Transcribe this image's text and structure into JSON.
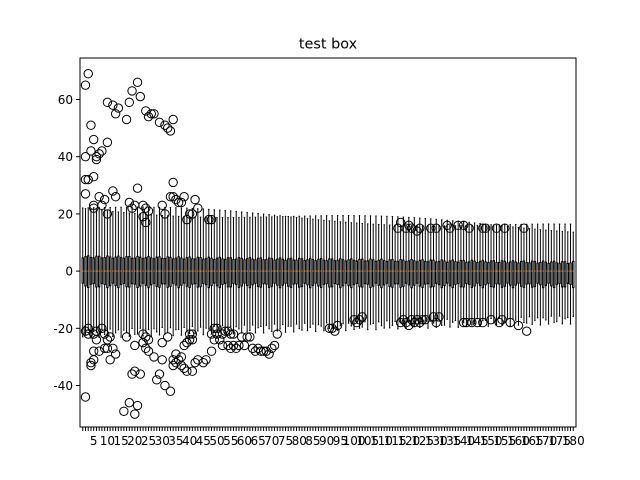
{
  "chart_data": {
    "type": "box",
    "title": "test box",
    "xlabel": "",
    "ylabel": "",
    "ylim": [
      -54.5,
      74.5
    ],
    "yticks": [
      -40,
      -20,
      0,
      20,
      40,
      60
    ],
    "box_count": 180,
    "x_tick_labels": [
      "5",
      "10",
      "15",
      "20",
      "25",
      "30",
      "35",
      "40",
      "45",
      "50",
      "55",
      "60",
      "65",
      "70",
      "75",
      "80",
      "85",
      "90",
      "95",
      "100",
      "105",
      "110",
      "115",
      "120",
      "125",
      "130",
      "135",
      "140",
      "145",
      "150",
      "155",
      "160",
      "165",
      "170",
      "175",
      "180"
    ],
    "grid": false,
    "colors": {
      "box": "#000000",
      "median": "#ff7f0e",
      "flier": "#000000"
    },
    "boxes_summary": {
      "median": 0,
      "q1_q3_early": [
        -5,
        5
      ],
      "q1_q3_late": [
        -5,
        3
      ],
      "whiskers_early": [
        -22,
        22
      ],
      "whiskers_late": [
        -17,
        15
      ]
    },
    "fliers": [
      {
        "box": 2,
        "values": [
          65,
          40,
          32,
          27,
          -21,
          -44
        ]
      },
      {
        "box": 3,
        "values": [
          69,
          32,
          -20,
          -22
        ]
      },
      {
        "box": 4,
        "values": [
          51,
          42,
          -33,
          -32
        ]
      },
      {
        "box": 5,
        "values": [
          46,
          33,
          23,
          22,
          -22,
          -28,
          -31
        ]
      },
      {
        "box": 6,
        "values": [
          40,
          39,
          -21,
          -24
        ]
      },
      {
        "box": 7,
        "values": [
          41,
          26,
          -28
        ]
      },
      {
        "box": 8,
        "values": [
          42,
          23,
          -20
        ]
      },
      {
        "box": 9,
        "values": [
          25,
          -22,
          -27
        ]
      },
      {
        "box": 10,
        "values": [
          59,
          45,
          20,
          -24,
          -27
        ]
      },
      {
        "box": 11,
        "values": [
          -23,
          -31
        ]
      },
      {
        "box": 12,
        "values": [
          58,
          28,
          -27
        ]
      },
      {
        "box": 13,
        "values": [
          55,
          26,
          -29
        ]
      },
      {
        "box": 14,
        "values": [
          57
        ]
      },
      {
        "box": 16,
        "values": [
          -49
        ]
      },
      {
        "box": 17,
        "values": [
          53,
          -23
        ]
      },
      {
        "box": 18,
        "values": [
          59,
          24,
          -46
        ]
      },
      {
        "box": 19,
        "values": [
          63,
          22,
          -36
        ]
      },
      {
        "box": 20,
        "values": [
          23,
          -50,
          -35,
          -26
        ]
      },
      {
        "box": 21,
        "values": [
          66,
          29,
          -47
        ]
      },
      {
        "box": 22,
        "values": [
          61,
          -36
        ]
      },
      {
        "box": 23,
        "values": [
          23,
          19,
          -25,
          -22
        ]
      },
      {
        "box": 24,
        "values": [
          56,
          22,
          17,
          -27,
          -23
        ]
      },
      {
        "box": 25,
        "values": [
          54,
          21,
          -28,
          -24
        ]
      },
      {
        "box": 26,
        "values": [
          55
        ]
      },
      {
        "box": 27,
        "values": [
          55,
          -30
        ]
      },
      {
        "box": 28,
        "values": [
          -38
        ]
      },
      {
        "box": 29,
        "values": [
          52,
          -36
        ]
      },
      {
        "box": 30,
        "values": [
          23,
          -31,
          -25
        ]
      },
      {
        "box": 31,
        "values": [
          51,
          20,
          -40
        ]
      },
      {
        "box": 32,
        "values": [
          50,
          -23
        ]
      },
      {
        "box": 33,
        "values": [
          49,
          26,
          -42
        ]
      },
      {
        "box": 34,
        "values": [
          53,
          31,
          26,
          -31,
          -33
        ]
      },
      {
        "box": 35,
        "values": [
          25,
          -29,
          -32
        ]
      },
      {
        "box": 36,
        "values": [
          24,
          -31
        ]
      },
      {
        "box": 37,
        "values": [
          24,
          -33,
          -30
        ]
      },
      {
        "box": 38,
        "values": [
          26,
          -26,
          -34
        ]
      },
      {
        "box": 39,
        "values": [
          18,
          -25,
          -35
        ]
      },
      {
        "box": 40,
        "values": [
          20,
          -24,
          -22
        ]
      },
      {
        "box": 41,
        "values": [
          20,
          -35,
          -24,
          -22
        ]
      },
      {
        "box": 42,
        "values": [
          25,
          -32
        ]
      },
      {
        "box": 43,
        "values": [
          22,
          -31
        ]
      },
      {
        "box": 45,
        "values": [
          -32
        ]
      },
      {
        "box": 46,
        "values": [
          -31
        ]
      },
      {
        "box": 47,
        "values": [
          18
        ]
      },
      {
        "box": 48,
        "values": [
          18,
          -28,
          -22
        ]
      },
      {
        "box": 49,
        "values": [
          -24,
          -20
        ]
      },
      {
        "box": 50,
        "values": [
          -22,
          -20
        ]
      },
      {
        "box": 51,
        "values": [
          -24
        ]
      },
      {
        "box": 52,
        "values": [
          -22,
          -26
        ]
      },
      {
        "box": 53,
        "values": [
          -21
        ]
      },
      {
        "box": 54,
        "values": [
          -21,
          -26
        ]
      },
      {
        "box": 55,
        "values": [
          -22,
          -27
        ]
      },
      {
        "box": 56,
        "values": [
          -22,
          -26
        ]
      },
      {
        "box": 57,
        "values": [
          -27
        ]
      },
      {
        "box": 58,
        "values": [
          -26
        ]
      },
      {
        "box": 59,
        "values": [
          -23
        ]
      },
      {
        "box": 60,
        "values": [
          -26
        ]
      },
      {
        "box": 61,
        "values": [
          -23
        ]
      },
      {
        "box": 62,
        "values": [
          -23
        ]
      },
      {
        "box": 63,
        "values": [
          -27
        ]
      },
      {
        "box": 64,
        "values": [
          -28
        ]
      },
      {
        "box": 65,
        "values": [
          -27
        ]
      },
      {
        "box": 66,
        "values": [
          -28
        ]
      },
      {
        "box": 67,
        "values": [
          -28
        ]
      },
      {
        "box": 68,
        "values": [
          -28
        ]
      },
      {
        "box": 69,
        "values": [
          -29
        ]
      },
      {
        "box": 70,
        "values": [
          -27
        ]
      },
      {
        "box": 71,
        "values": [
          -26
        ]
      },
      {
        "box": 72,
        "values": [
          -22
        ]
      },
      {
        "box": 91,
        "values": [
          -20
        ]
      },
      {
        "box": 92,
        "values": [
          -20
        ]
      },
      {
        "box": 93,
        "values": [
          -21
        ]
      },
      {
        "box": 94,
        "values": [
          -19
        ]
      },
      {
        "box": 100,
        "values": [
          -17
        ]
      },
      {
        "box": 101,
        "values": [
          -18
        ]
      },
      {
        "box": 102,
        "values": [
          -17
        ]
      },
      {
        "box": 103,
        "values": [
          -16
        ]
      },
      {
        "box": 116,
        "values": [
          15
        ]
      },
      {
        "box": 117,
        "values": [
          17,
          -18
        ]
      },
      {
        "box": 118,
        "values": [
          -17
        ]
      },
      {
        "box": 119,
        "values": [
          15,
          -18
        ]
      },
      {
        "box": 120,
        "values": [
          16,
          -19
        ]
      },
      {
        "box": 121,
        "values": [
          15,
          -17
        ]
      },
      {
        "box": 122,
        "values": [
          -18
        ]
      },
      {
        "box": 123,
        "values": [
          14,
          -17
        ]
      },
      {
        "box": 124,
        "values": [
          15,
          -18
        ]
      },
      {
        "box": 125,
        "values": [
          -17
        ]
      },
      {
        "box": 126,
        "values": [
          -17
        ]
      },
      {
        "box": 128,
        "values": [
          15
        ]
      },
      {
        "box": 129,
        "values": [
          -16
        ]
      },
      {
        "box": 130,
        "values": [
          15,
          -18
        ]
      },
      {
        "box": 131,
        "values": [
          -16
        ]
      },
      {
        "box": 134,
        "values": [
          16
        ]
      },
      {
        "box": 135,
        "values": [
          15
        ]
      },
      {
        "box": 138,
        "values": [
          16
        ]
      },
      {
        "box": 140,
        "values": [
          16,
          -18
        ]
      },
      {
        "box": 141,
        "values": [
          -18
        ]
      },
      {
        "box": 142,
        "values": [
          15
        ]
      },
      {
        "box": 143,
        "values": [
          -18
        ]
      },
      {
        "box": 145,
        "values": [
          -18
        ]
      },
      {
        "box": 147,
        "values": [
          15,
          -18
        ]
      },
      {
        "box": 148,
        "values": [
          15
        ]
      },
      {
        "box": 150,
        "values": [
          -17
        ]
      },
      {
        "box": 152,
        "values": [
          15
        ]
      },
      {
        "box": 153,
        "values": [
          -18
        ]
      },
      {
        "box": 154,
        "values": [
          -17
        ]
      },
      {
        "box": 155,
        "values": [
          15
        ]
      },
      {
        "box": 157,
        "values": [
          -18
        ]
      },
      {
        "box": 160,
        "values": [
          -19
        ]
      },
      {
        "box": 162,
        "values": [
          15
        ]
      },
      {
        "box": 163,
        "values": [
          -21
        ]
      }
    ]
  }
}
